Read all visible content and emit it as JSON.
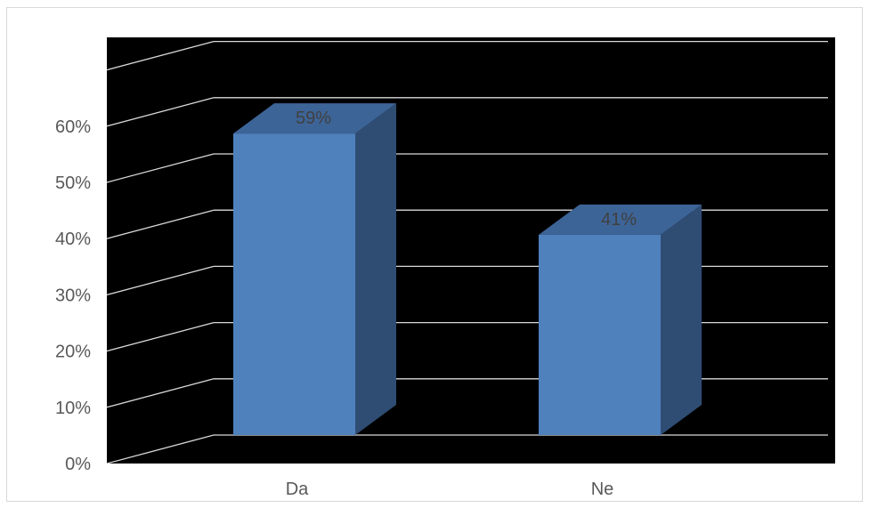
{
  "chart_data": {
    "type": "bar",
    "style": "3d-column",
    "categories": [
      "Da",
      "Ne"
    ],
    "values": [
      59,
      41
    ],
    "data_labels": [
      "59%",
      "41%"
    ],
    "ylim": [
      0,
      70
    ],
    "y_ticks": [
      {
        "value": 0,
        "label": "0%"
      },
      {
        "value": 10,
        "label": "10%"
      },
      {
        "value": 20,
        "label": "20%"
      },
      {
        "value": 30,
        "label": "30%"
      },
      {
        "value": 40,
        "label": "40%"
      },
      {
        "value": 50,
        "label": "50%"
      },
      {
        "value": 60,
        "label": "60%"
      }
    ],
    "grid": true,
    "legend": "none",
    "colors": {
      "plot_background": "#000000",
      "gridline": "#d9d9d9",
      "bar_front": "#4f81bd",
      "bar_side": "#2f4d73",
      "bar_top": "#3d6497",
      "tick_text": "#595959",
      "data_label_text": "#404040"
    }
  }
}
